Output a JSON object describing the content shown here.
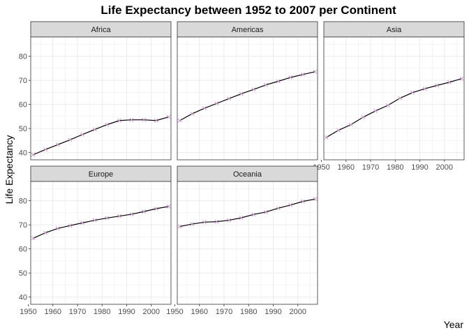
{
  "chart_data": {
    "type": "line",
    "title": "Life Expectancy between 1952 to 2007 per Continent",
    "xlabel": "Year",
    "ylabel": "Life Expectancy",
    "xlim": [
      1951,
      2008
    ],
    "ylim": [
      37,
      88
    ],
    "x_ticks": [
      1950,
      1960,
      1970,
      1980,
      1990,
      2000
    ],
    "y_ticks": [
      40,
      50,
      60,
      70,
      80
    ],
    "grid": true,
    "line_color": "#000000",
    "marker": "x",
    "marker_color": "#cc99cc",
    "panel_background": "#ffffff",
    "grid_color": "#ebebeb",
    "strip_fill": "#d9d9d9",
    "panel_border": "#333333",
    "x": [
      1952,
      1957,
      1962,
      1967,
      1972,
      1977,
      1982,
      1987,
      1992,
      1997,
      2002,
      2007
    ],
    "panels": [
      {
        "name": "Africa",
        "values": [
          39.1,
          41.3,
          43.3,
          45.3,
          47.5,
          49.6,
          51.6,
          53.3,
          53.6,
          53.6,
          53.3,
          54.8
        ]
      },
      {
        "name": "Americas",
        "values": [
          53.3,
          56.1,
          58.4,
          60.4,
          62.4,
          64.4,
          66.2,
          68.1,
          69.6,
          71.2,
          72.4,
          73.6
        ]
      },
      {
        "name": "Asia",
        "values": [
          46.3,
          49.3,
          51.6,
          54.7,
          57.3,
          59.6,
          62.6,
          64.9,
          66.5,
          67.9,
          69.2,
          70.7
        ]
      },
      {
        "name": "Europe",
        "values": [
          64.4,
          66.7,
          68.5,
          69.7,
          70.8,
          71.9,
          72.8,
          73.6,
          74.4,
          75.5,
          76.7,
          77.6
        ]
      },
      {
        "name": "Oceania",
        "values": [
          69.3,
          70.3,
          71.1,
          71.3,
          71.9,
          72.9,
          74.3,
          75.3,
          76.9,
          78.2,
          79.7,
          80.7
        ]
      }
    ]
  }
}
